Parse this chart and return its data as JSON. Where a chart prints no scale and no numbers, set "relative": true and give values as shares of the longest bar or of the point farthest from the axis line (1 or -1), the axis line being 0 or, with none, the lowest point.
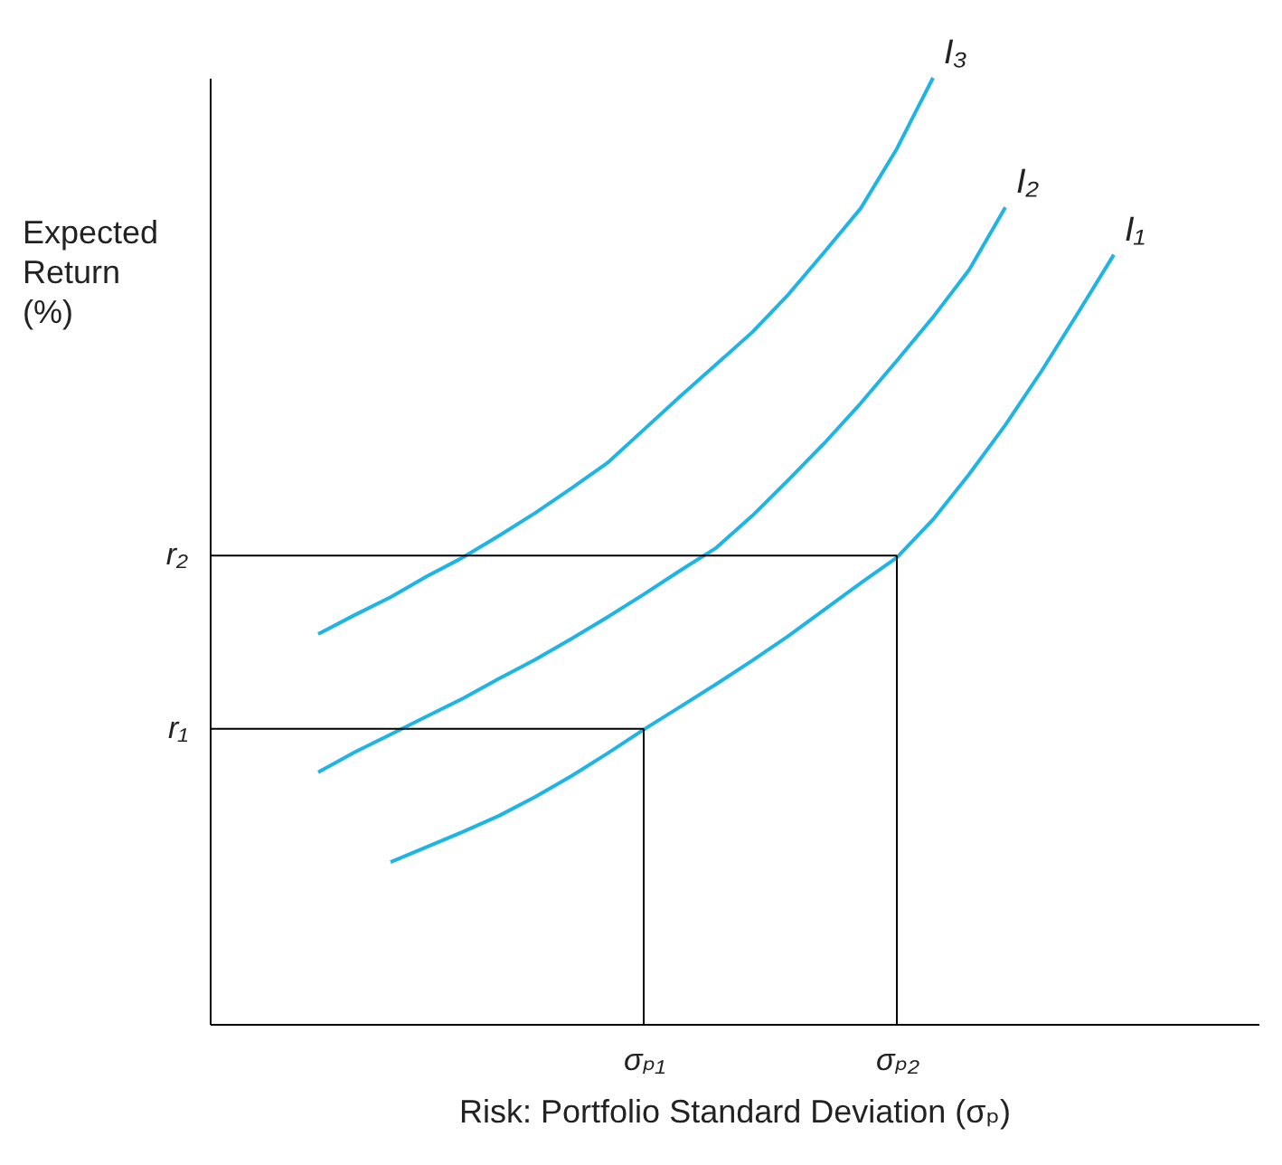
{
  "chart_data": {
    "type": "line",
    "relative": true,
    "xlabel": "Risk: Portfolio Standard Deviation (σₚ)",
    "ylabel": "Expected Return (%)",
    "categories": [
      null,
      null,
      null,
      null,
      null,
      null,
      null,
      null,
      null,
      null,
      null,
      null,
      "σₚ₁",
      null,
      null,
      null,
      null,
      null,
      null,
      "σₚ₂",
      null,
      null,
      null,
      null,
      null,
      null,
      null,
      null,
      null,
      null
    ],
    "legend": false,
    "marker": "none",
    "line_style": "solid",
    "ref_lines": [
      {
        "axis": "y",
        "value": 0.312,
        "label": "r₁",
        "color": "#000000"
      },
      {
        "axis": "y",
        "value": 0.495,
        "label": "r₂",
        "color": "#000000"
      },
      {
        "axis": "x",
        "value": "σₚ₁",
        "color": "#000000"
      },
      {
        "axis": "x",
        "value": "σₚ₂",
        "color": "#000000"
      }
    ],
    "series": [
      {
        "name": "I₁",
        "color": "#1eb4e6",
        "values": [
          null,
          null,
          null,
          null,
          null,
          0.171,
          0.187,
          0.203,
          0.22,
          0.24,
          0.262,
          0.286,
          0.311,
          0.335,
          0.359,
          0.384,
          0.41,
          0.438,
          0.466,
          0.493,
          0.533,
          0.581,
          0.633,
          0.69,
          0.751,
          0.813,
          null,
          null,
          null,
          null
        ]
      },
      {
        "name": "I₂",
        "color": "#1eb4e6",
        "values": [
          null,
          null,
          null,
          0.266,
          0.287,
          0.306,
          0.325,
          0.344,
          0.365,
          0.385,
          0.407,
          0.43,
          0.454,
          0.479,
          0.503,
          0.537,
          0.575,
          0.614,
          0.656,
          0.701,
          0.747,
          0.797,
          0.863,
          null,
          null,
          null,
          null,
          null,
          null,
          null
        ]
      },
      {
        "name": "I₃",
        "color": "#1eb4e6",
        "values": [
          null,
          null,
          null,
          0.412,
          0.432,
          0.451,
          0.473,
          0.493,
          0.516,
          0.54,
          0.566,
          0.593,
          0.628,
          0.663,
          0.697,
          0.731,
          0.771,
          0.816,
          0.862,
          0.925,
          1,
          null,
          null,
          null,
          null,
          null,
          null,
          null,
          null,
          null
        ]
      }
    ]
  }
}
